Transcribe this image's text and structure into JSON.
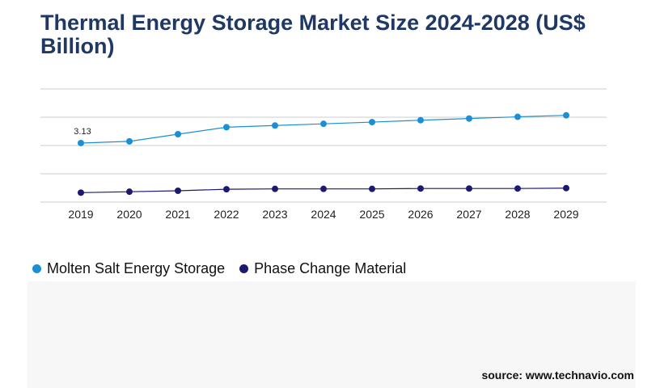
{
  "title": "Thermal Energy Storage Market Size 2024-2028 (US$ Billion)",
  "source": "source: www.technavio.com",
  "colors": {
    "title": "#1f3864",
    "molten_salt": "#1a8fd6",
    "phase_change": "#1b1a6e",
    "gridline": "#cccccc"
  },
  "legend": {
    "items": [
      {
        "label": "Molten Salt Energy Storage",
        "color": "#1a8fd6"
      },
      {
        "label": "Phase Change Material",
        "color": "#1b1a6e"
      }
    ]
  },
  "chart_data": {
    "type": "line",
    "title": "Thermal Energy Storage Market Size 2024-2028 (US$ Billion)",
    "xlabel": "",
    "ylabel": "",
    "x": [
      "2019",
      "2020",
      "2021",
      "2022",
      "2023",
      "2024",
      "2025",
      "2026",
      "2027",
      "2028",
      "2029"
    ],
    "ylim": [
      0,
      6
    ],
    "y_axis_labels_visible": false,
    "grid": true,
    "legend_position": "bottom-left",
    "series": [
      {
        "name": "Molten Salt Energy Storage",
        "color": "#1a8fd6",
        "values": [
          3.13,
          3.22,
          3.6,
          3.97,
          4.06,
          4.15,
          4.24,
          4.34,
          4.43,
          4.52,
          4.6
        ],
        "data_labels": [
          "3.13",
          null,
          null,
          null,
          null,
          null,
          null,
          null,
          null,
          null,
          null
        ]
      },
      {
        "name": "Phase Change Material",
        "color": "#1b1a6e",
        "values": [
          0.5,
          0.55,
          0.6,
          0.68,
          0.7,
          0.7,
          0.7,
          0.72,
          0.72,
          0.72,
          0.74
        ],
        "data_labels": [
          null,
          null,
          null,
          null,
          null,
          null,
          null,
          null,
          null,
          null,
          null
        ]
      }
    ]
  }
}
